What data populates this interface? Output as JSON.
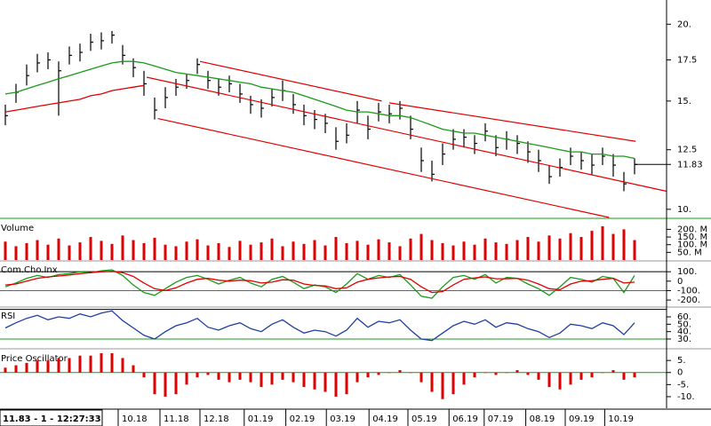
{
  "status": "11.83 - 1 - 12:27:33",
  "chart_data": [
    {
      "type": "hlc",
      "log": true,
      "xlim": [
        -0.5,
        62
      ],
      "ylim": [
        9.7,
        21.9
      ],
      "yticks": [
        {
          "value": 10,
          "label": "10."
        },
        12.5,
        {
          "value": 15,
          "label": "15."
        },
        17.5,
        {
          "value": 20,
          "label": "20."
        }
      ],
      "bar_color": "#000000",
      "high": [
        14.8,
        16.0,
        17.2,
        17.9,
        18.0,
        17.4,
        18.4,
        18.6,
        19.3,
        19.4,
        19.5,
        18.5,
        17.6,
        16.8,
        15.2,
        15.8,
        16.3,
        16.6,
        17.6,
        16.8,
        16.3,
        16.5,
        16.0,
        15.3,
        15.1,
        15.7,
        16.2,
        15.4,
        14.8,
        14.5,
        14.3,
        13.6,
        13.8,
        15.0,
        14.2,
        14.9,
        14.8,
        15.0,
        14.2,
        12.6,
        12.0,
        12.8,
        13.5,
        13.5,
        13.2,
        13.8,
        13.2,
        13.4,
        13.2,
        12.9,
        12.5,
        11.8,
        12.1,
        12.6,
        12.4,
        12.3,
        12.6,
        12.3,
        11.5,
        12.1
      ],
      "low": [
        13.7,
        14.9,
        15.9,
        16.7,
        16.9,
        14.2,
        17.2,
        17.4,
        18.1,
        18.2,
        18.6,
        17.2,
        16.4,
        15.3,
        14.0,
        14.6,
        15.3,
        15.7,
        16.6,
        15.7,
        15.3,
        15.5,
        14.9,
        14.3,
        14.1,
        14.7,
        15.0,
        14.3,
        13.7,
        13.5,
        13.3,
        12.5,
        12.8,
        13.8,
        13.0,
        13.9,
        13.8,
        14.0,
        13.0,
        11.5,
        11.1,
        11.8,
        12.5,
        12.6,
        12.3,
        12.9,
        12.2,
        12.5,
        12.3,
        11.9,
        11.5,
        11.0,
        11.3,
        11.8,
        11.6,
        11.4,
        11.8,
        11.3,
        10.7,
        11.4
      ],
      "close": [
        14.2,
        15.5,
        16.5,
        17.3,
        17.5,
        16.8,
        17.8,
        18.0,
        18.7,
        18.8,
        19.2,
        17.8,
        17.0,
        16.0,
        14.5,
        15.2,
        15.8,
        16.2,
        17.2,
        16.2,
        15.8,
        16.0,
        15.4,
        14.8,
        14.6,
        15.2,
        15.6,
        14.8,
        14.2,
        14.0,
        13.8,
        12.9,
        13.2,
        14.5,
        13.5,
        14.4,
        14.3,
        14.6,
        13.5,
        12.0,
        11.4,
        12.3,
        13.0,
        13.1,
        12.8,
        13.4,
        12.6,
        13.0,
        12.8,
        12.4,
        12.0,
        11.3,
        11.7,
        12.2,
        12.0,
        11.8,
        12.2,
        11.8,
        11.0,
        11.83
      ],
      "series": [
        {
          "color": "#1a9a1a",
          "values": [
            15.4,
            15.5,
            15.7,
            15.9,
            16.1,
            16.3,
            16.5,
            16.7,
            16.9,
            17.1,
            17.3,
            17.4,
            17.4,
            17.3,
            17.1,
            16.9,
            16.7,
            16.6,
            16.5,
            16.4,
            16.3,
            16.2,
            16.1,
            16.0,
            15.8,
            15.7,
            15.6,
            15.5,
            15.3,
            15.1,
            14.9,
            14.7,
            14.5,
            14.4,
            14.4,
            14.3,
            14.2,
            14.2,
            14.1,
            13.9,
            13.7,
            13.5,
            13.4,
            13.3,
            13.3,
            13.2,
            13.1,
            13.0,
            12.9,
            12.8,
            12.7,
            12.6,
            12.5,
            12.4,
            12.4,
            12.3,
            12.3,
            12.2,
            12.2,
            12.1
          ]
        },
        {
          "color": "#e00000",
          "values": [
            14.4,
            14.5,
            14.6,
            14.7,
            14.8,
            14.9,
            15.0,
            15.1,
            15.3,
            15.4,
            15.6,
            15.7,
            15.8,
            15.9,
            null,
            null,
            null,
            null,
            null,
            null,
            null,
            null,
            null,
            null,
            null,
            null,
            null,
            null,
            null,
            null,
            null,
            null,
            null,
            null,
            null,
            null,
            null,
            null,
            null,
            null,
            null,
            null,
            null,
            null,
            null,
            null,
            null,
            null,
            null,
            null,
            null,
            null,
            null,
            null,
            null,
            null,
            null,
            null,
            null,
            null
          ]
        }
      ],
      "trendline_color": "#e00000",
      "trendlines": [
        {
          "x": [
            18.25,
            35.3
          ],
          "y": [
            17.4,
            15.0
          ]
        },
        {
          "x": [
            36,
            59.1
          ],
          "y": [
            14.9,
            12.9
          ]
        },
        {
          "x": [
            13.25,
            62
          ],
          "y": [
            16.4,
            10.7
          ]
        },
        {
          "x": [
            14.3,
            56.6
          ],
          "y": [
            14.05,
            9.7
          ]
        }
      ],
      "last_value": 11.83
    },
    {
      "type": "bar",
      "title": "Volume",
      "xlim": [
        -0.5,
        62
      ],
      "ylim": [
        0,
        260
      ],
      "color": "#e00000",
      "yticks": [
        {
          "value": 50,
          "label": "50. M"
        },
        {
          "value": 100,
          "label": "100. M"
        },
        {
          "value": 150,
          "label": "150. M"
        },
        {
          "value": 200,
          "label": "200. M"
        }
      ],
      "values": [
        120,
        90,
        110,
        130,
        100,
        140,
        95,
        115,
        150,
        125,
        105,
        160,
        130,
        110,
        145,
        100,
        90,
        120,
        135,
        95,
        110,
        85,
        125,
        100,
        115,
        140,
        90,
        120,
        105,
        130,
        95,
        150,
        110,
        125,
        100,
        135,
        115,
        90,
        140,
        170,
        130,
        110,
        95,
        120,
        100,
        140,
        115,
        105,
        130,
        150,
        120,
        160,
        140,
        175,
        150,
        190,
        220,
        170,
        200,
        130
      ]
    },
    {
      "type": "line",
      "title": "Com.Cho.Inx",
      "xlim": [
        -0.5,
        62
      ],
      "ylim": [
        -265,
        205
      ],
      "yticks": [
        {
          "value": 100,
          "label": "100."
        },
        0,
        {
          "value": -100,
          "label": "-100."
        },
        {
          "value": -200,
          "label": "-200."
        }
      ],
      "reference_lines": [
        {
          "value": 100,
          "color": "#000000"
        },
        {
          "value": -100,
          "color": "#1a9a1a"
        }
      ],
      "series": [
        {
          "color": "#1a9a1a",
          "values": [
            -60,
            -20,
            30,
            60,
            40,
            70,
            80,
            100,
            90,
            110,
            120,
            60,
            -40,
            -120,
            -150,
            -80,
            -10,
            40,
            60,
            20,
            -30,
            10,
            40,
            -20,
            -60,
            20,
            50,
            -10,
            -80,
            -40,
            -60,
            -120,
            -30,
            80,
            20,
            60,
            40,
            70,
            -40,
            -160,
            -180,
            -60,
            40,
            60,
            20,
            70,
            -20,
            40,
            30,
            -30,
            -80,
            -150,
            -60,
            40,
            20,
            -10,
            50,
            30,
            -120,
            60
          ]
        },
        {
          "color": "#e00000",
          "values": [
            -40,
            -30,
            0,
            30,
            45,
            55,
            65,
            80,
            90,
            100,
            105,
            90,
            50,
            -20,
            -80,
            -100,
            -70,
            -20,
            20,
            30,
            10,
            0,
            10,
            5,
            -20,
            -10,
            15,
            10,
            -30,
            -45,
            -50,
            -80,
            -70,
            -10,
            20,
            35,
            45,
            50,
            20,
            -60,
            -120,
            -110,
            -40,
            20,
            35,
            45,
            25,
            25,
            30,
            10,
            -30,
            -80,
            -90,
            -30,
            0,
            5,
            20,
            30,
            -20,
            -10
          ]
        }
      ]
    },
    {
      "type": "line",
      "title": "RSI",
      "xlim": [
        -0.5,
        62
      ],
      "ylim": [
        18,
        72
      ],
      "yticks": [
        {
          "value": 60,
          "label": "60."
        },
        {
          "value": 50,
          "label": "50."
        },
        {
          "value": 40,
          "label": "40."
        },
        {
          "value": 30,
          "label": "30."
        }
      ],
      "reference_lines": [
        {
          "value": 70,
          "color": "#000000"
        },
        {
          "value": 30,
          "color": "#1a9a1a"
        }
      ],
      "series": [
        {
          "color": "#1f3f9f",
          "values": [
            45,
            52,
            58,
            62,
            56,
            60,
            58,
            64,
            60,
            65,
            68,
            55,
            45,
            35,
            30,
            40,
            48,
            52,
            58,
            46,
            42,
            48,
            52,
            44,
            40,
            50,
            56,
            46,
            38,
            42,
            40,
            34,
            42,
            58,
            46,
            54,
            52,
            56,
            42,
            30,
            28,
            38,
            48,
            54,
            50,
            56,
            46,
            52,
            50,
            44,
            40,
            32,
            38,
            50,
            48,
            44,
            52,
            48,
            36,
            52
          ]
        }
      ]
    },
    {
      "type": "bar",
      "title": "Price Oscillator",
      "xlim": [
        -0.5,
        62
      ],
      "ylim": [
        -14.8,
        9.1
      ],
      "color": "#e00000",
      "yticks": [
        {
          "value": 5,
          "label": "5."
        },
        0,
        {
          "value": -5,
          "label": "-5."
        },
        {
          "value": -10,
          "label": "-10."
        }
      ],
      "reference_lines": [
        {
          "value": 0,
          "color": "#1a9a1a"
        }
      ],
      "values": [
        2,
        3,
        4,
        5,
        5,
        6,
        6,
        7,
        7,
        8,
        8,
        6,
        3,
        -2,
        -9,
        -10,
        -9,
        -5,
        -2,
        -1,
        -3,
        -4,
        -3,
        -4,
        -6,
        -5,
        -3,
        -4,
        -6,
        -7,
        -8,
        -10,
        -9,
        -4,
        -2,
        -1,
        0,
        1,
        0,
        -4,
        -8,
        -11,
        -9,
        -5,
        -2,
        0,
        -1,
        0,
        1,
        -1,
        -3,
        -6,
        -7,
        -5,
        -3,
        -2,
        0,
        1,
        -3,
        -2
      ],
      "xticks": [
        {
          "value": 10.58,
          "label": "10.18"
        },
        {
          "value": 14.5,
          "label": "11.18"
        },
        {
          "value": 18.25,
          "label": "12.18"
        },
        {
          "value": 22.4,
          "label": "01.19"
        },
        {
          "value": 26.3,
          "label": "02.19"
        },
        {
          "value": 30.1,
          "label": "03.19"
        },
        {
          "value": 34.1,
          "label": "04.19"
        },
        {
          "value": 37.75,
          "label": "05.19"
        },
        {
          "value": 41.6,
          "label": "06.19"
        },
        {
          "value": 44.9,
          "label": "07.19"
        },
        {
          "value": 48.8,
          "label": "08.19"
        },
        {
          "value": 52.5,
          "label": "09.19"
        },
        {
          "value": 56.2,
          "label": "10.19"
        }
      ]
    }
  ]
}
